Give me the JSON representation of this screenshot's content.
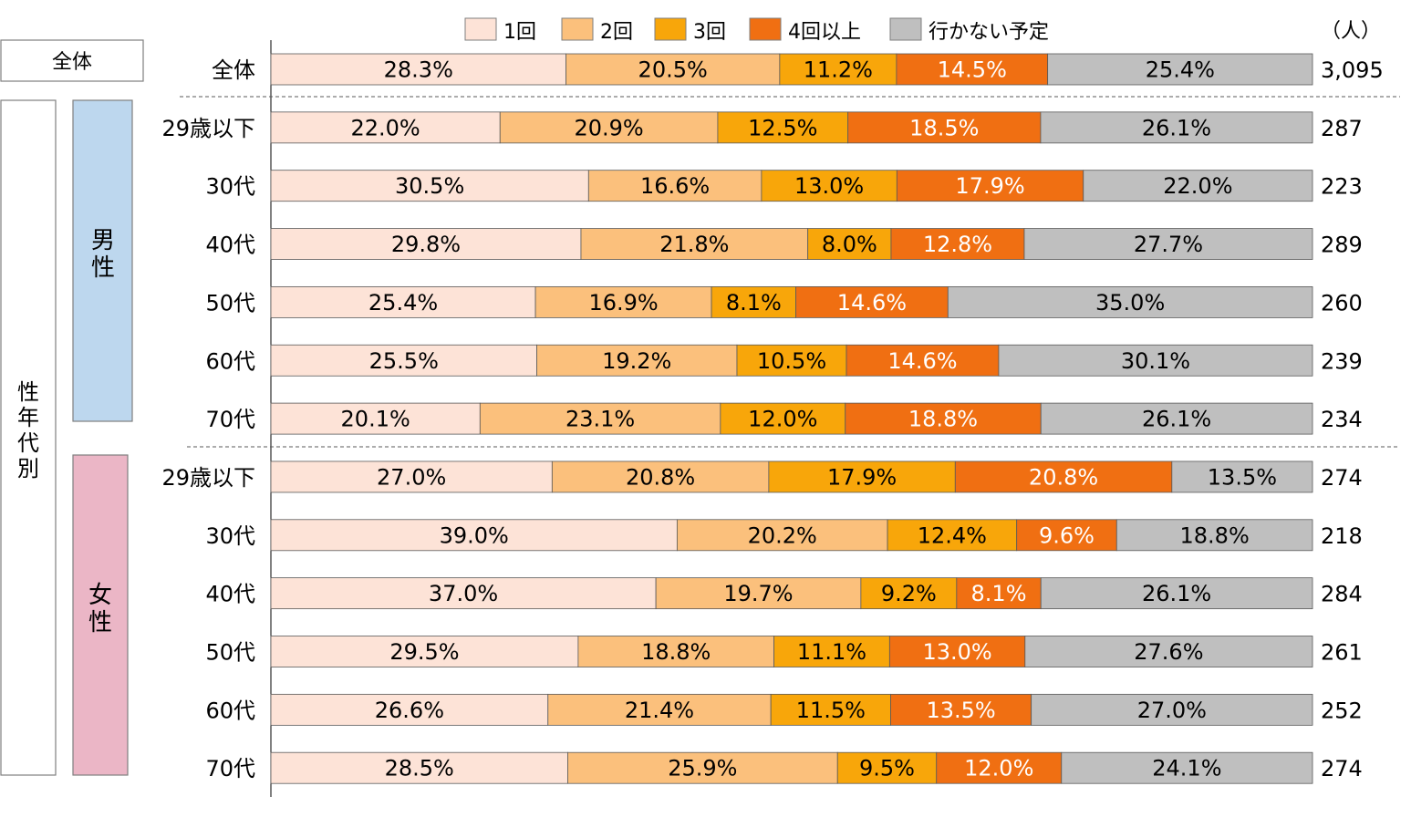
{
  "chart_data": {
    "type": "bar",
    "orientation": "horizontal",
    "stacked": true,
    "unit_label": "（人）",
    "legend_position": "top",
    "xlim": [
      0,
      100
    ],
    "series": [
      {
        "name": "1回",
        "color": "#fde3d7"
      },
      {
        "name": "2回",
        "color": "#fbc07c"
      },
      {
        "name": "3回",
        "color": "#f8a60a"
      },
      {
        "name": "4回以上",
        "color": "#f06f12"
      },
      {
        "name": "行かない予定",
        "color": "#bfbfbf"
      }
    ],
    "groups": {
      "all": "全体",
      "seg": "性年代別",
      "male": "男性",
      "female": "女性"
    },
    "rows": [
      {
        "group": "all",
        "label": "全体",
        "n": "3,095",
        "values": [
          28.3,
          20.5,
          11.2,
          14.5,
          25.4
        ],
        "labels": [
          "28.3%",
          "20.5%",
          "11.2%",
          "14.5%",
          "25.4%"
        ]
      },
      {
        "group": "male",
        "label": "29歳以下",
        "n": "287",
        "values": [
          22.0,
          20.9,
          12.5,
          18.5,
          26.1
        ],
        "labels": [
          "22.0%",
          "20.9%",
          "12.5%",
          "18.5%",
          "26.1%"
        ]
      },
      {
        "group": "male",
        "label": "30代",
        "n": "223",
        "values": [
          30.5,
          16.6,
          13.0,
          17.9,
          22.0
        ],
        "labels": [
          "30.5%",
          "16.6%",
          "13.0%",
          "17.9%",
          "22.0%"
        ]
      },
      {
        "group": "male",
        "label": "40代",
        "n": "289",
        "values": [
          29.8,
          21.8,
          8.0,
          12.8,
          27.7
        ],
        "labels": [
          "29.8%",
          "21.8%",
          "8.0%",
          "12.8%",
          "27.7%"
        ]
      },
      {
        "group": "male",
        "label": "50代",
        "n": "260",
        "values": [
          25.4,
          16.9,
          8.1,
          14.6,
          35.0
        ],
        "labels": [
          "25.4%",
          "16.9%",
          "8.1%",
          "14.6%",
          "35.0%"
        ]
      },
      {
        "group": "male",
        "label": "60代",
        "n": "239",
        "values": [
          25.5,
          19.2,
          10.5,
          14.6,
          30.1
        ],
        "labels": [
          "25.5%",
          "19.2%",
          "10.5%",
          "14.6%",
          "30.1%"
        ]
      },
      {
        "group": "male",
        "label": "70代",
        "n": "234",
        "values": [
          20.1,
          23.1,
          12.0,
          18.8,
          26.1
        ],
        "labels": [
          "20.1%",
          "23.1%",
          "12.0%",
          "18.8%",
          "26.1%"
        ]
      },
      {
        "group": "female",
        "label": "29歳以下",
        "n": "274",
        "values": [
          27.0,
          20.8,
          17.9,
          20.8,
          13.5
        ],
        "labels": [
          "27.0%",
          "20.8%",
          "17.9%",
          "20.8%",
          "13.5%"
        ]
      },
      {
        "group": "female",
        "label": "30代",
        "n": "218",
        "values": [
          39.0,
          20.2,
          12.4,
          9.6,
          18.8
        ],
        "labels": [
          "39.0%",
          "20.2%",
          "12.4%",
          "9.6%",
          "18.8%"
        ]
      },
      {
        "group": "female",
        "label": "40代",
        "n": "284",
        "values": [
          37.0,
          19.7,
          9.2,
          8.1,
          26.1
        ],
        "labels": [
          "37.0%",
          "19.7%",
          "9.2%",
          "8.1%",
          "26.1%"
        ]
      },
      {
        "group": "female",
        "label": "50代",
        "n": "261",
        "values": [
          29.5,
          18.8,
          11.1,
          13.0,
          27.6
        ],
        "labels": [
          "29.5%",
          "18.8%",
          "11.1%",
          "13.0%",
          "27.6%"
        ]
      },
      {
        "group": "female",
        "label": "60代",
        "n": "252",
        "values": [
          26.6,
          21.4,
          11.5,
          13.5,
          27.0
        ],
        "labels": [
          "26.6%",
          "21.4%",
          "11.5%",
          "13.5%",
          "27.0%"
        ]
      },
      {
        "group": "female",
        "label": "70代",
        "n": "274",
        "values": [
          28.5,
          25.9,
          9.5,
          12.0,
          24.1
        ],
        "labels": [
          "28.5%",
          "25.9%",
          "9.5%",
          "12.0%",
          "24.1%"
        ]
      }
    ]
  }
}
